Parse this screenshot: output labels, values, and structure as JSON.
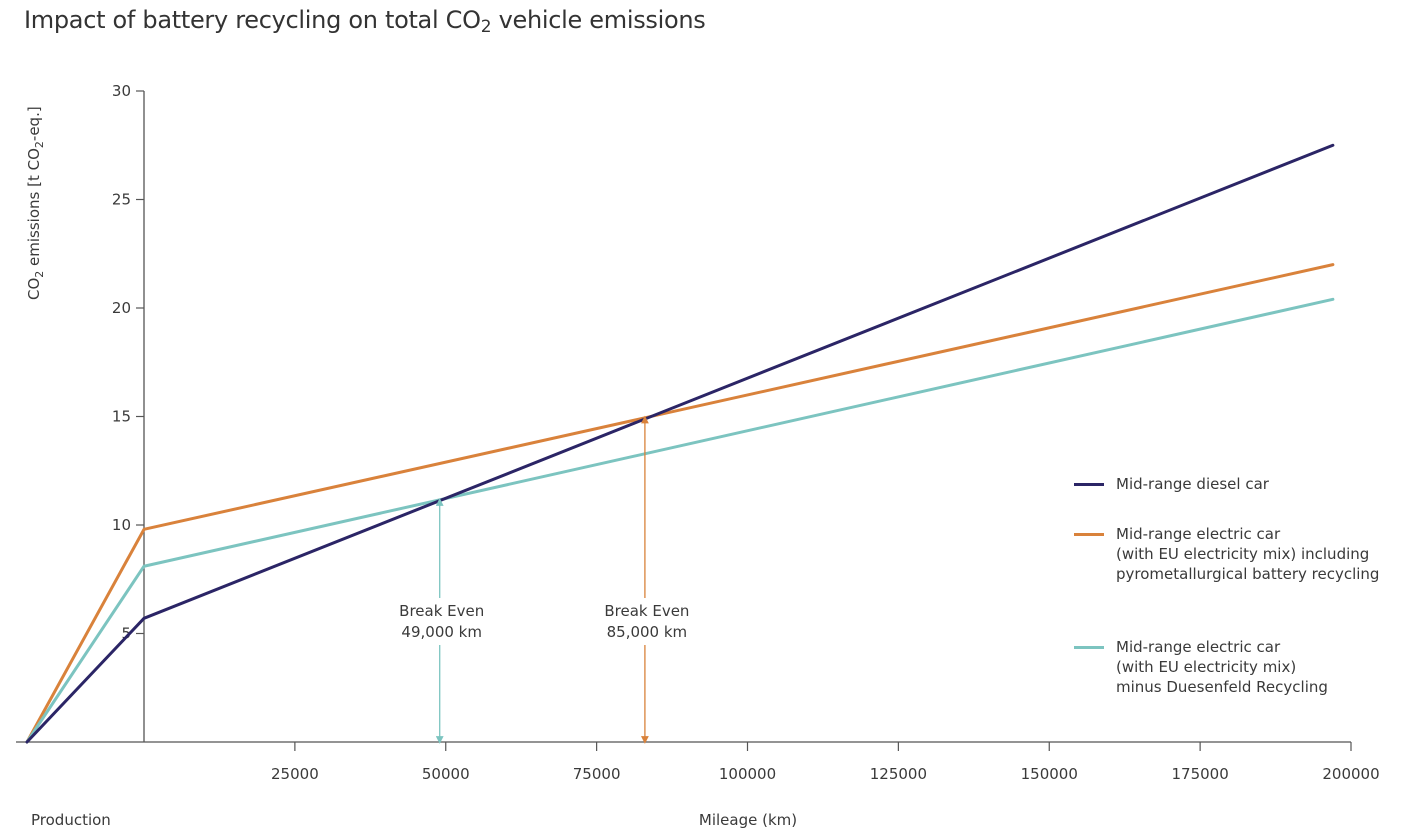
{
  "chart_data": {
    "type": "line",
    "title": "Impact of battery recycling on total CO2 vehicle emissions",
    "title_parts": {
      "before": "Impact of battery recycling on total CO",
      "subscript": "2",
      "after": " vehicle emissions"
    },
    "xlabel": "Mileage (km)",
    "xlabel_production": "Production",
    "ylabel": "CO2 emissions  [t CO2-eq.]",
    "ylabel_parts": {
      "a": "CO",
      "a_sub": "2",
      "b": " emissions  [t CO",
      "b_sub": "2",
      "c": "-eq.]"
    },
    "xlim": [
      0,
      200000
    ],
    "ylim": [
      0,
      30
    ],
    "x_ticks": [
      25000,
      50000,
      75000,
      100000,
      125000,
      150000,
      175000,
      200000
    ],
    "x_tick_labels": [
      "25000",
      "50000",
      "75000",
      "100000",
      "125000",
      "150000",
      "175000",
      "200000"
    ],
    "y_ticks": [
      5,
      10,
      15,
      20,
      25,
      30
    ],
    "y_tick_labels": [
      "5",
      "10",
      "15",
      "20",
      "25",
      "30"
    ],
    "grid": false,
    "legend_position": "right",
    "series": [
      {
        "name": "Mid-range diesel car",
        "legend_lines": [
          "Mid-range diesel car"
        ],
        "color": "#2b2566",
        "production_start": 0,
        "x": [
          0,
          197000
        ],
        "y": [
          5.7,
          27.5
        ]
      },
      {
        "name": "Mid-range electric car (with EU electricity mix) including pyrometallurgical battery recycling",
        "legend_lines": [
          "Mid-range electric car",
          "(with EU electricity mix) including",
          "pyrometallurgical battery recycling"
        ],
        "color": "#d9823b",
        "production_start": 0,
        "x": [
          0,
          197000
        ],
        "y": [
          9.8,
          22.0
        ]
      },
      {
        "name": "Mid-range electric car (with EU electricity mix) minus Duesenfeld Recycling",
        "legend_lines": [
          "Mid-range electric car",
          "(with EU electricity mix)",
          "minus Duesenfeld Recycling"
        ],
        "color": "#7cc4c0",
        "production_start": 0,
        "x": [
          0,
          197000
        ],
        "y": [
          8.1,
          20.4
        ]
      }
    ],
    "annotations": [
      {
        "label_lines": [
          "Break Even",
          "49,000 km"
        ],
        "x": 49000,
        "y": 11.2,
        "color": "#7cc4c0"
      },
      {
        "label_lines": [
          "Break Even",
          "85,000 km"
        ],
        "x": 83000,
        "y": 15.0,
        "color": "#d9823b"
      }
    ]
  }
}
